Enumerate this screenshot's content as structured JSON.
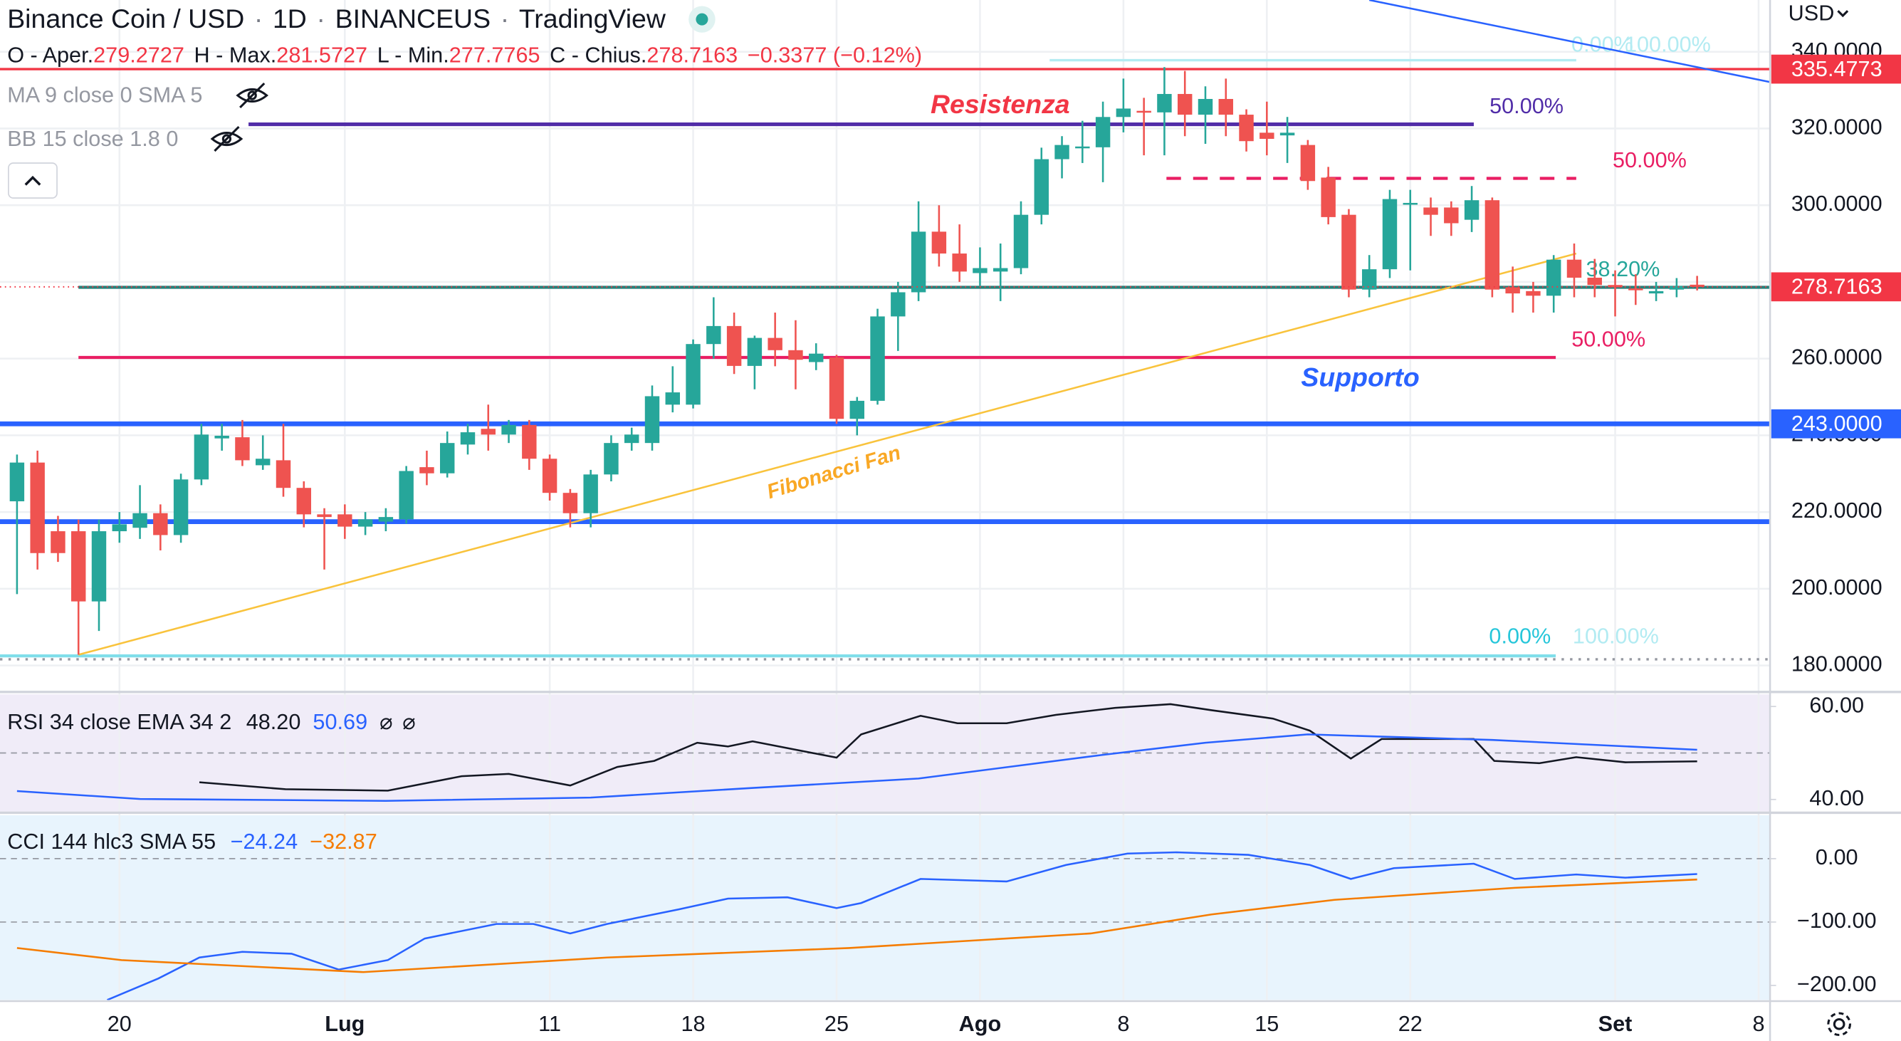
{
  "chart_data": [
    {
      "type": "candlestick",
      "title": "Binance Coin / USD",
      "interval": "1D",
      "exchange": "BINANCEUS",
      "source": "TradingView",
      "legend": {
        "open_label": "O - Aper.",
        "high_label": "H - Max.",
        "low_label": "L - Min.",
        "close_label": "C - Chius.",
        "change_label": "−0.3377 (−0.12%)"
      },
      "indicators": [
        "MA 9 close 0 SMA 5",
        "BB 15 close 1.8 0"
      ],
      "currency": "USD",
      "up_color": "#26a69a",
      "down_color": "#ef5350",
      "categories": [
        null,
        null,
        null,
        null,
        null,
        "20",
        null,
        null,
        null,
        null,
        null,
        null,
        null,
        null,
        null,
        null,
        "Lug",
        null,
        null,
        null,
        null,
        null,
        null,
        null,
        null,
        null,
        "11",
        null,
        null,
        null,
        null,
        null,
        null,
        "18",
        null,
        null,
        null,
        null,
        null,
        null,
        "25",
        null,
        null,
        null,
        null,
        null,
        null,
        "Ago",
        null,
        null,
        null,
        null,
        null,
        null,
        "8",
        null,
        null,
        null,
        null,
        null,
        null,
        "15",
        null,
        null,
        null,
        null,
        null,
        null,
        "22",
        null,
        null,
        null,
        null,
        null,
        null,
        null,
        null,
        null,
        "Set",
        null,
        null,
        null,
        null,
        null,
        null,
        "8"
      ],
      "open": [
        222.8,
        232.9,
        215,
        215,
        196.7,
        215,
        215.9,
        219.7,
        214,
        228.5,
        239.2,
        239.5,
        232.2,
        233.5,
        226.3,
        219.4,
        219.4,
        216.2,
        217.5,
        218.1,
        231.7,
        230.1,
        237.6,
        241.7,
        240.2,
        242.7,
        233.9,
        225,
        219.7,
        229.8,
        238,
        238,
        248,
        248,
        263.8,
        268.5,
        258.1,
        265.4,
        262.2,
        259.1,
        260.3,
        244.3,
        249,
        271,
        277.3,
        293.1,
        287.4,
        282.3,
        282.7,
        283.6,
        297.5,
        312,
        315.1,
        315.1,
        323,
        324.6,
        324.2,
        329,
        323.6,
        327.7,
        323.6,
        318.9,
        318.2,
        315.7,
        307.2,
        297.5,
        278,
        283.3,
        300.3,
        299.4,
        299.4,
        296.2,
        301.3,
        278.6,
        277.6,
        276.4,
        285.8,
        281.1,
        279.2,
        278.3,
        277,
        278,
        279.2727,
        null,
        null,
        null
      ],
      "high": [
        235,
        236,
        219,
        218,
        218,
        220,
        227,
        222,
        230,
        243,
        243,
        244,
        240,
        243,
        228,
        221,
        222,
        220,
        221,
        232,
        236,
        241,
        243,
        248,
        244,
        244,
        235,
        226,
        231,
        240,
        242,
        253,
        258,
        265,
        276,
        272,
        266,
        272,
        270,
        264,
        261,
        250,
        273,
        280,
        301,
        300,
        295,
        289,
        290,
        301,
        315,
        318,
        322,
        327,
        333,
        328,
        336,
        335,
        331,
        333,
        325,
        327,
        323,
        317,
        310,
        299,
        287,
        304,
        304,
        302,
        301,
        305,
        302,
        284,
        280,
        287,
        290,
        286,
        283,
        282,
        280,
        281,
        281.5727,
        null,
        null,
        null
      ],
      "low": [
        198.6,
        205,
        207,
        182.8,
        189,
        212,
        213,
        210,
        212,
        227,
        236,
        232,
        231,
        224,
        216,
        205,
        213,
        214,
        215,
        217,
        227,
        229,
        235,
        236,
        238,
        231,
        223,
        216,
        216,
        228,
        236,
        236,
        246,
        247,
        260,
        256,
        252,
        258,
        252,
        257,
        243,
        240,
        248,
        262,
        275,
        284,
        280,
        279,
        275,
        282,
        295,
        307,
        311,
        306,
        319,
        313,
        313,
        318,
        316,
        318,
        314,
        313,
        311,
        304,
        295,
        276,
        276,
        281,
        283,
        292,
        292,
        293,
        276,
        272,
        272,
        272,
        276,
        276,
        271,
        274,
        275,
        276,
        277.7765,
        null,
        null,
        null
      ],
      "close": [
        232.9,
        209.3,
        209.3,
        196.7,
        215,
        216.8,
        219.7,
        214,
        228.5,
        240.2,
        239.9,
        233.5,
        233.9,
        226.3,
        219.4,
        218.7,
        216.2,
        218.1,
        218.7,
        230.7,
        230.1,
        238,
        240.8,
        240.2,
        242.7,
        233.9,
        225,
        219.7,
        229.8,
        238,
        240.2,
        250.2,
        251.2,
        263.8,
        268.5,
        258.1,
        265.4,
        262.2,
        259.7,
        261.3,
        244.3,
        249,
        271,
        277.3,
        293.1,
        287.4,
        282.7,
        283.6,
        283.6,
        297.5,
        312,
        315.7,
        315.3,
        323,
        325.2,
        324.2,
        329,
        323.6,
        327.7,
        323.6,
        316.7,
        317.3,
        318.9,
        306.3,
        296.9,
        278,
        283.3,
        301.6,
        300.6,
        297.5,
        295.3,
        301.3,
        278,
        277,
        276.4,
        285.8,
        281.1,
        279.2,
        278.6,
        277.9,
        277.6,
        278.9,
        278.7163,
        null,
        null,
        null
      ],
      "xlim": [
        -0.83,
        85.56
      ],
      "ylim": [
        173.4,
        353.5
      ],
      "yticks": [
        {
          "value": 180,
          "label": "180.0000"
        },
        {
          "value": 200,
          "label": "200.0000"
        },
        {
          "value": 220,
          "label": "220.0000"
        },
        {
          "value": 240,
          "label": "240.0000"
        },
        {
          "value": 260,
          "label": "260.0000"
        },
        {
          "value": 280,
          "label": "280.0000"
        },
        {
          "value": 300,
          "label": "300.0000"
        },
        {
          "value": 320,
          "label": "320.0000"
        },
        {
          "value": 340,
          "label": "340.0000"
        }
      ],
      "grid": true,
      "price_line_color": "#f23645",
      "levels": [
        {
          "value": 335.4773,
          "color": "#f23645",
          "width": 2,
          "tag": true
        },
        {
          "value": 243,
          "color": "#2962ff",
          "width": 4,
          "label": "243.0000"
        },
        {
          "value": 217.5,
          "color": "#2962ff",
          "width": 4
        },
        {
          "value": 181.6,
          "color": "#9598a1",
          "width": 2,
          "dotted": true
        }
      ],
      "drawings": [
        {
          "start": [
            11.3,
            321.1
          ],
          "end": [
            71.1,
            321.1
          ],
          "color": "#512da8",
          "width": 3,
          "labels": [
            {
              "text": "50.00%",
              "color": "#512da8"
            }
          ]
        },
        {
          "start": [
            56.1,
            307
          ],
          "end": [
            76.1,
            307
          ],
          "color": "#e91e63",
          "width": 2.5,
          "dashed": true,
          "labels": [
            {
              "text": "50.00%",
              "color": "#e91e63"
            }
          ]
        },
        {
          "start": [
            3,
            260.3
          ],
          "end": [
            75.1,
            260.3
          ],
          "color": "#e91e63",
          "width": 2.5,
          "labels": [
            {
              "text": "50.00%",
              "color": "#e91e63"
            }
          ]
        },
        {
          "start": [
            50.4,
            337.8
          ],
          "end": [
            76.1,
            337.8
          ],
          "color": "#b2ebf2",
          "width": 2,
          "labels": [
            {
              "text": "0.00%",
              "color": "#b2ebf2"
            },
            {
              "text": "100.00%",
              "color": "#b2ebf2"
            }
          ]
        },
        {
          "start": [
            -0.83,
            182.5
          ],
          "end": [
            75.1,
            182.5
          ],
          "color": "#80deea",
          "width": 2.5,
          "labels": [
            {
              "text": "0.00%",
              "color": "#26c6da"
            },
            {
              "text": "100.00%",
              "color": "#b2ebf2"
            }
          ]
        },
        {
          "start": [
            3,
            278.6
          ],
          "end": [
            85.56,
            278.6
          ],
          "color": "#26807a",
          "width": 2.5
        },
        {
          "start": [
            3,
            182.8
          ],
          "end": [
            76.1,
            287.4
          ],
          "color": "#f9c33c",
          "width": 1.5,
          "labels": [
            {
              "text": "38.20%",
              "color": "#26a69a"
            }
          ]
        },
        {
          "start": [
            66,
            353.5
          ],
          "end": [
            85.56,
            332.1
          ],
          "color": "#2962ff",
          "width": 1.5
        }
      ],
      "annotations": [
        {
          "text": "Resistenza",
          "color": "#f23645"
        },
        {
          "text": "Supporto",
          "color": "#2962ff"
        },
        {
          "text": "Fibonacci Fan",
          "color": "#f9a825"
        }
      ]
    },
    {
      "type": "line",
      "title": "RSI 34 close EMA 34 2",
      "ylim": [
        37.4,
        62.6
      ],
      "yticks": [
        {
          "value": 60,
          "label": "60.00"
        },
        {
          "value": 40,
          "label": "40.00"
        }
      ],
      "hlines": [
        50
      ],
      "band_color": "#f0ecf8",
      "series": [
        {
          "color": "#131722",
          "legend_label": "48.20",
          "x": [
            8.9,
            13.1,
            18.1,
            21.7,
            24,
            27,
            29.3,
            31.1,
            33.2,
            34.7,
            35.9,
            40,
            41.2,
            44.1,
            45.9,
            48.3,
            50.7,
            53.6,
            56.3,
            58.3,
            61.3,
            63.1,
            65.1,
            66.6,
            71.1,
            72.1,
            74.3,
            76.1,
            78.5,
            82
          ],
          "values": [
            43.7,
            42.2,
            41.9,
            45,
            45.5,
            43,
            47,
            48.3,
            52.2,
            51.4,
            52.5,
            49,
            54,
            58,
            56.4,
            56.4,
            58.2,
            59.7,
            60.5,
            59.2,
            57.4,
            54.8,
            48.8,
            53,
            53,
            48.3,
            47.8,
            49.1,
            48,
            48.2
          ]
        },
        {
          "color": "#2962ff",
          "legend_label": "50.69",
          "x": [
            0,
            6,
            18,
            28,
            36,
            44,
            53,
            58,
            63,
            72,
            82
          ],
          "values": [
            41.8,
            40.1,
            39.7,
            40.4,
            42.5,
            44.5,
            49.6,
            52.2,
            54,
            52.8,
            50.69
          ]
        }
      ]
    },
    {
      "type": "line",
      "title": "CCI 144 hlc3 SMA 55",
      "ylim": [
        -222.9,
        68.6
      ],
      "yticks": [
        {
          "value": 0,
          "label": "0.00"
        },
        {
          "value": -100,
          "label": "−100.00"
        },
        {
          "value": -200,
          "label": "−200.00"
        }
      ],
      "hlines": [
        0,
        -100
      ],
      "band_color": "#e8f4fd",
      "series": [
        {
          "color": "#2962ff",
          "legend_label": "−24.24",
          "x": [
            4.4,
            6.9,
            8.9,
            11,
            13.4,
            15.7,
            18.1,
            19.9,
            23.4,
            25.2,
            27,
            28.8,
            32.3,
            34.7,
            37.6,
            40,
            41.2,
            44.1,
            48.3,
            51.2,
            54.2,
            56.6,
            60.1,
            63.1,
            65.1,
            67.2,
            71.1,
            73.1,
            76.1,
            78.5,
            82
          ],
          "values": [
            -223,
            -189,
            -156,
            -147,
            -150,
            -175,
            -160,
            -126,
            -103,
            -103,
            -118,
            -103,
            -80,
            -63,
            -61,
            -78,
            -70,
            -32,
            -36,
            -10,
            8,
            10,
            6,
            -10,
            -32,
            -15,
            -8,
            -32,
            -25,
            -30,
            -24.24
          ]
        },
        {
          "color": "#f57c00",
          "legend_label": "−32.87",
          "x": [
            0,
            5.1,
            16.9,
            28.8,
            40.6,
            52.4,
            58.3,
            64.3,
            73.1,
            82
          ],
          "values": [
            -141,
            -160,
            -179,
            -156,
            -141,
            -118,
            -88,
            -65,
            -46,
            -32.87
          ]
        }
      ]
    }
  ]
}
